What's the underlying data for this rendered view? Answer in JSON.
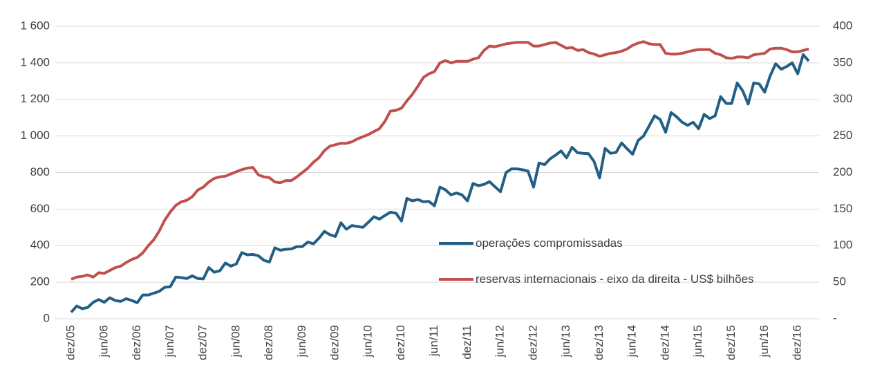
{
  "chart_data": {
    "type": "line",
    "categories": [
      "dez/05",
      null,
      null,
      null,
      null,
      null,
      "jun/06",
      null,
      null,
      null,
      null,
      null,
      "dez/06",
      null,
      null,
      null,
      null,
      null,
      "jun/07",
      null,
      null,
      null,
      null,
      null,
      "dez/07",
      null,
      null,
      null,
      null,
      null,
      "jun/08",
      null,
      null,
      null,
      null,
      null,
      "dez/08",
      null,
      null,
      null,
      null,
      null,
      "jun/09",
      null,
      null,
      null,
      null,
      null,
      "dez/09",
      null,
      null,
      null,
      null,
      null,
      "jun/10",
      null,
      null,
      null,
      null,
      null,
      "dez/10",
      null,
      null,
      null,
      null,
      null,
      "jun/11",
      null,
      null,
      null,
      null,
      null,
      "dez/11",
      null,
      null,
      null,
      null,
      null,
      "jun/12",
      null,
      null,
      null,
      null,
      null,
      "dez/12",
      null,
      null,
      null,
      null,
      null,
      "jun/13",
      null,
      null,
      null,
      null,
      null,
      "dez/13",
      null,
      null,
      null,
      null,
      null,
      "jun/14",
      null,
      null,
      null,
      null,
      null,
      "dez/14",
      null,
      null,
      null,
      null,
      null,
      "jun/15",
      null,
      null,
      null,
      null,
      null,
      "dez/15",
      null,
      null,
      null,
      null,
      null,
      "jun/16",
      null,
      null,
      null,
      null,
      null,
      "dez/16",
      null,
      null
    ],
    "series": [
      {
        "name": "operações compromissadas",
        "color": "#215f85",
        "values": [
          35,
          70,
          55,
          62,
          90,
          105,
          90,
          115,
          100,
          95,
          110,
          100,
          88,
          130,
          130,
          140,
          150,
          172,
          175,
          228,
          225,
          220,
          235,
          220,
          218,
          280,
          255,
          262,
          305,
          288,
          300,
          362,
          350,
          352,
          345,
          320,
          310,
          388,
          375,
          380,
          382,
          395,
          395,
          420,
          410,
          440,
          478,
          460,
          450,
          525,
          490,
          510,
          505,
          500,
          528,
          558,
          545,
          565,
          583,
          578,
          535,
          658,
          645,
          652,
          640,
          642,
          618,
          720,
          705,
          678,
          688,
          678,
          645,
          740,
          728,
          735,
          750,
          722,
          695,
          800,
          820,
          820,
          815,
          808,
          720,
          852,
          843,
          875,
          895,
          918,
          880,
          938,
          908,
          905,
          903,
          860,
          770,
          932,
          905,
          910,
          962,
          930,
          900,
          975,
          1000,
          1055,
          1110,
          1090,
          1020,
          1128,
          1105,
          1075,
          1058,
          1075,
          1040,
          1118,
          1095,
          1110,
          1215,
          1178,
          1178,
          1290,
          1248,
          1175,
          1290,
          1285,
          1240,
          1330,
          1395,
          1365,
          1380,
          1400,
          1340,
          1445,
          1410
        ]
      },
      {
        "name": "reservas internacionais - eixo da direita -  US$ bilhões",
        "color": "#c0504d",
        "axis": "y2",
        "values": [
          54,
          57,
          58,
          60,
          57,
          63,
          62,
          66,
          70,
          72,
          77,
          81,
          84,
          90,
          100,
          108,
          120,
          135,
          146,
          155,
          160,
          162,
          167,
          176,
          180,
          187,
          192,
          194,
          195,
          198,
          201,
          204,
          206,
          207,
          197,
          194,
          193,
          187,
          186,
          189,
          189,
          194,
          200,
          206,
          214,
          220,
          230,
          236,
          238,
          240,
          240,
          242,
          246,
          249,
          252,
          256,
          260,
          270,
          284,
          285,
          288,
          298,
          307,
          318,
          330,
          335,
          338,
          350,
          353,
          350,
          352,
          352,
          352,
          355,
          357,
          367,
          373,
          372,
          374,
          376,
          377,
          378,
          378,
          378,
          373,
          373,
          375,
          377,
          378,
          374,
          370,
          371,
          367,
          368,
          364,
          362,
          359,
          361,
          363,
          364,
          366,
          369,
          374,
          377,
          379,
          376,
          375,
          375,
          363,
          362,
          362,
          363,
          365,
          367,
          368,
          368,
          368,
          363,
          361,
          357,
          356,
          358,
          358,
          357,
          361,
          362,
          363,
          369,
          370,
          370,
          368,
          365,
          365,
          367,
          369
        ]
      }
    ],
    "ylim": [
      0,
      1600
    ],
    "yticks": [
      0,
      200,
      400,
      600,
      800,
      {
        "value": 1000,
        "label": "1 000"
      },
      {
        "value": 1200,
        "label": "1 200"
      },
      {
        "value": 1400,
        "label": "1 400"
      },
      {
        "value": 1600,
        "label": "1 600"
      }
    ],
    "y2lim": [
      0,
      400
    ],
    "y2ticks": [
      {
        "value": 0,
        "label": "-"
      },
      50,
      100,
      150,
      200,
      250,
      300,
      350,
      400
    ],
    "grid": true
  }
}
